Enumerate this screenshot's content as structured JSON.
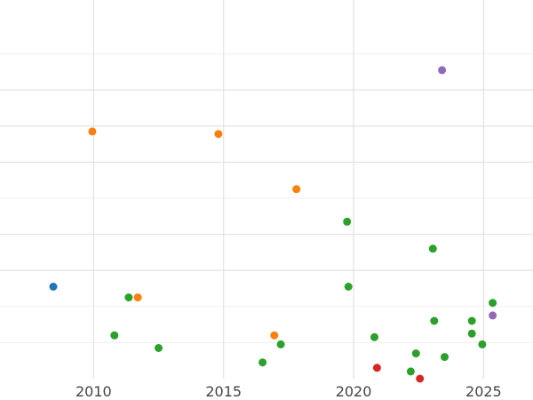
{
  "chart_data": {
    "type": "scatter",
    "title": "",
    "xlabel": "",
    "ylabel": "",
    "xlim": [
      2006.4,
      2026.9
    ],
    "ylim": [
      0,
      10
    ],
    "grid": true,
    "x_ticks": [
      2010,
      2015,
      2020,
      2025
    ],
    "x_tick_labels": [
      "2010",
      "2015",
      "2020",
      "2025"
    ],
    "series": [
      {
        "color": "#1f77b4",
        "points": [
          {
            "x": 2008.45,
            "y": 2.55
          }
        ]
      },
      {
        "color": "#ff7f0e",
        "points": [
          {
            "x": 2009.95,
            "y": 6.85
          },
          {
            "x": 2011.7,
            "y": 2.25
          },
          {
            "x": 2014.8,
            "y": 6.78
          },
          {
            "x": 2016.95,
            "y": 1.2
          },
          {
            "x": 2017.8,
            "y": 5.25
          }
        ]
      },
      {
        "color": "#2ca02c",
        "points": [
          {
            "x": 2010.8,
            "y": 1.2
          },
          {
            "x": 2011.35,
            "y": 2.25
          },
          {
            "x": 2012.5,
            "y": 0.85
          },
          {
            "x": 2016.5,
            "y": 0.45
          },
          {
            "x": 2017.2,
            "y": 0.95
          },
          {
            "x": 2019.75,
            "y": 4.35
          },
          {
            "x": 2019.8,
            "y": 2.55
          },
          {
            "x": 2020.8,
            "y": 1.15
          },
          {
            "x": 2022.2,
            "y": 0.2
          },
          {
            "x": 2022.4,
            "y": 0.7
          },
          {
            "x": 2023.05,
            "y": 3.6
          },
          {
            "x": 2023.1,
            "y": 1.6
          },
          {
            "x": 2023.5,
            "y": 0.6
          },
          {
            "x": 2024.55,
            "y": 1.6
          },
          {
            "x": 2024.55,
            "y": 1.25
          },
          {
            "x": 2024.95,
            "y": 0.95
          },
          {
            "x": 2025.35,
            "y": 2.1
          }
        ]
      },
      {
        "color": "#d62728",
        "points": [
          {
            "x": 2020.9,
            "y": 0.3
          },
          {
            "x": 2022.55,
            "y": 0.0
          }
        ]
      },
      {
        "color": "#9467bd",
        "points": [
          {
            "x": 2023.4,
            "y": 8.55
          },
          {
            "x": 2025.35,
            "y": 1.75
          }
        ]
      }
    ]
  }
}
